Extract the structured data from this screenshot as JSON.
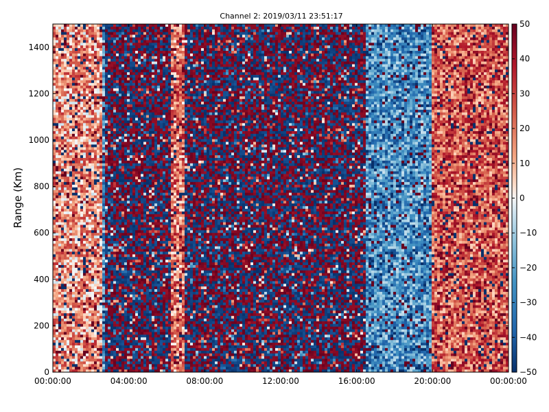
{
  "chart_data": {
    "type": "heatmap",
    "title": "Channel 2: 2019/03/11 23:51:17",
    "ylabel": "Range (Km)",
    "xlabel": "",
    "x_tick_labels": [
      "00:00:00",
      "04:00:00",
      "08:00:00",
      "12:00:00",
      "16:00:00",
      "20:00:00",
      "00:00:00"
    ],
    "x_tick_hours": [
      0,
      4,
      8,
      12,
      16,
      20,
      24
    ],
    "xlim_hours": [
      0,
      24
    ],
    "y_ticks": [
      0,
      200,
      400,
      600,
      800,
      1000,
      1200,
      1400
    ],
    "ylim": [
      0,
      1500
    ],
    "colorbar": {
      "ticks": [
        50,
        40,
        30,
        20,
        10,
        0,
        -10,
        -20,
        -30,
        -40,
        -50
      ],
      "range": [
        -50,
        50
      ],
      "colormap": "RdBu_r",
      "colors": {
        "low": "#08306b",
        "mid": "#f7f7f7",
        "high": "#67001f"
      }
    },
    "bands": [
      {
        "start_hour": 0.0,
        "end_hour": 2.6,
        "character": "mostly light red, mean 15"
      },
      {
        "start_hour": 2.6,
        "end_hour": 2.8,
        "character": "light blue strip, mean -25"
      },
      {
        "start_hour": 2.8,
        "end_hour": 6.2,
        "character": "saturated noise, alternating -50 and 50"
      },
      {
        "start_hour": 6.2,
        "end_hour": 6.9,
        "character": "light orange vertical streak, mean 20"
      },
      {
        "start_hour": 6.9,
        "end_hour": 16.5,
        "character": "saturated noise, alternating -50 and 50"
      },
      {
        "start_hour": 16.5,
        "end_hour": 19.9,
        "character": "mostly light-to-mid blue, mean -25"
      },
      {
        "start_hour": 19.9,
        "end_hour": 24.0,
        "character": "mostly light to dark red, mean 25"
      }
    ],
    "grid": false
  }
}
